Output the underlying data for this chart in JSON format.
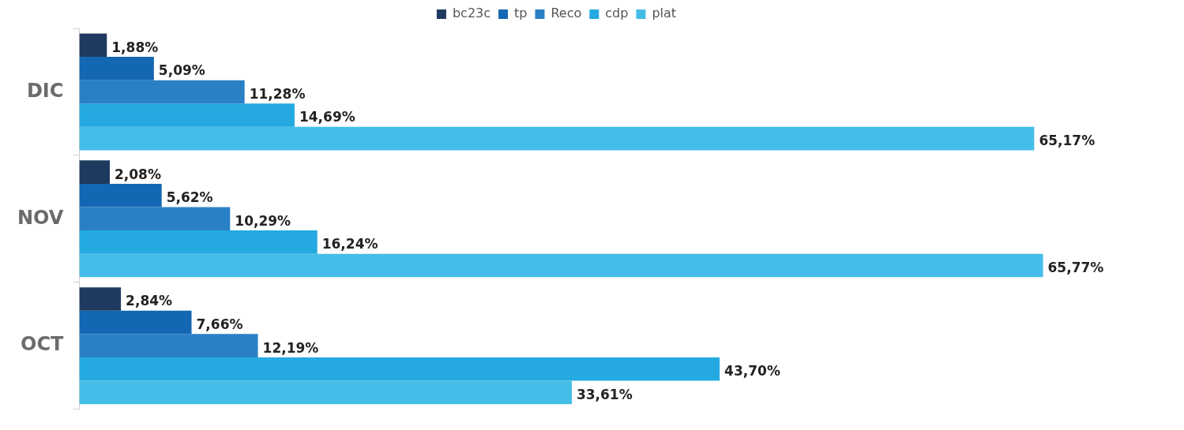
{
  "chart_data": {
    "type": "bar",
    "orientation": "horizontal",
    "categories": [
      "DIC",
      "NOV",
      "OCT"
    ],
    "series": [
      {
        "name": "bc23c",
        "color": "#1f3a5f",
        "values": [
          1.88,
          2.08,
          2.84
        ],
        "value_labels": [
          "1,88%",
          "2,08%",
          "2,84%"
        ]
      },
      {
        "name": "tp",
        "color": "#1467b3",
        "values": [
          5.09,
          5.62,
          7.66
        ],
        "value_labels": [
          "5,09%",
          "5,62%",
          "7,66%"
        ]
      },
      {
        "name": "Reco",
        "color": "#2a80c5",
        "values": [
          11.28,
          10.29,
          12.19
        ],
        "value_labels": [
          "11,28%",
          "10,29%",
          "12,19%"
        ]
      },
      {
        "name": "cdp",
        "color": "#24a9e0",
        "values": [
          14.69,
          16.24,
          43.7
        ],
        "value_labels": [
          "14,69%",
          "16,24%",
          "43,70%"
        ]
      },
      {
        "name": "plat",
        "color": "#45bde8",
        "values": [
          65.17,
          65.77,
          33.61
        ],
        "value_labels": [
          "65,17%",
          "65,77%",
          "33,61%"
        ]
      }
    ],
    "legend": "top",
    "grid": false,
    "tick_labels": "y"
  }
}
